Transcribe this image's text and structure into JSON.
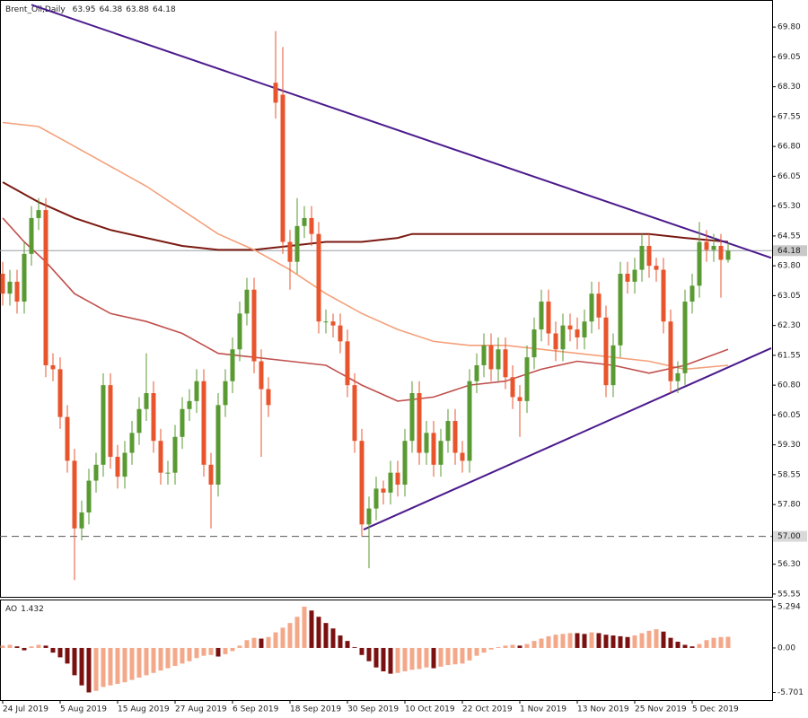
{
  "chart_data": [
    {
      "type": "candlestick",
      "title": "Brent_Oil,Daily",
      "up_color": "#5a9a32",
      "down_color": "#e8542c",
      "xlim": [
        -0.375,
        107.125
      ],
      "ylim": [
        55.48,
        70.48
      ],
      "open": [
        63.6,
        63.1,
        63.4,
        62.9,
        64.1,
        65.0,
        65.2,
        61.3,
        61.2,
        60.0,
        58.9,
        57.2,
        57.6,
        58.4,
        58.8,
        60.8,
        59.0,
        58.5,
        59.1,
        59.6,
        60.2,
        60.6,
        59.4,
        58.6,
        58.6,
        59.5,
        60.2,
        60.4,
        60.9,
        58.8,
        58.3,
        60.3,
        60.9,
        61.7,
        62.6,
        63.2,
        61.4,
        60.7,
        68.4,
        68.1,
        64.4,
        63.9,
        64.8,
        65.0,
        64.6,
        62.4,
        62.4,
        62.3,
        61.9,
        60.8,
        59.4,
        57.3,
        57.7,
        58.2,
        58.1,
        58.6,
        58.3,
        59.4,
        60.6,
        59.1,
        59.6,
        58.8,
        59.4,
        59.9,
        59.1,
        58.9,
        60.9,
        61.3,
        61.8,
        61.2,
        61.7,
        61.0,
        60.5,
        60.4,
        61.5,
        62.2,
        62.9,
        62.1,
        61.7,
        62.3,
        62.2,
        62.0,
        62.4,
        63.1,
        62.5,
        60.8,
        61.8,
        63.6,
        63.4,
        63.7,
        64.3,
        63.8,
        63.7,
        62.4,
        60.9,
        61.1,
        62.9,
        63.3,
        64.4,
        64.2,
        64.3,
        63.95
      ],
      "high": [
        63.9,
        63.7,
        63.7,
        64.4,
        65.3,
        65.5,
        65.5,
        61.6,
        61.5,
        60.3,
        59.2,
        57.9,
        58.7,
        59.1,
        61.1,
        61.1,
        59.3,
        59.4,
        59.9,
        60.5,
        61.6,
        60.9,
        59.7,
        58.9,
        59.8,
        60.5,
        60.7,
        61.2,
        61.2,
        59.1,
        60.6,
        61.2,
        62.0,
        62.9,
        63.5,
        63.5,
        61.7,
        61.0,
        69.7,
        69.3,
        64.7,
        65.5,
        65.3,
        65.3,
        64.9,
        62.7,
        62.6,
        62.6,
        62.2,
        61.1,
        59.7,
        58.0,
        58.5,
        58.4,
        58.9,
        58.9,
        59.7,
        60.9,
        60.9,
        59.9,
        59.9,
        59.7,
        60.2,
        60.2,
        59.4,
        61.2,
        61.6,
        62.1,
        62.1,
        62.0,
        62.0,
        61.3,
        60.8,
        61.8,
        62.5,
        63.2,
        63.2,
        62.4,
        62.6,
        62.6,
        62.5,
        62.7,
        63.4,
        63.4,
        62.8,
        62.1,
        63.9,
        63.9,
        64.0,
        64.6,
        64.6,
        64.0,
        64.0,
        62.7,
        61.4,
        63.2,
        63.6,
        64.9,
        64.7,
        64.6,
        64.6,
        64.38
      ],
      "low": [
        62.8,
        62.8,
        62.6,
        62.6,
        63.8,
        64.7,
        61.0,
        60.9,
        59.7,
        58.6,
        55.9,
        56.9,
        57.3,
        58.1,
        58.5,
        58.7,
        58.2,
        58.2,
        58.8,
        59.3,
        59.9,
        59.1,
        58.3,
        58.3,
        58.3,
        59.2,
        59.9,
        60.1,
        58.5,
        57.2,
        58.0,
        60.0,
        60.6,
        61.4,
        62.3,
        61.1,
        59.0,
        60.0,
        67.5,
        64.1,
        63.2,
        63.6,
        64.5,
        64.3,
        62.1,
        62.1,
        62.0,
        61.6,
        60.5,
        59.1,
        57.0,
        56.2,
        57.4,
        57.8,
        57.8,
        58.0,
        58.0,
        59.1,
        58.8,
        58.8,
        58.5,
        58.5,
        59.1,
        58.8,
        58.6,
        58.6,
        60.6,
        61.0,
        60.9,
        60.9,
        60.7,
        60.2,
        59.5,
        60.1,
        61.2,
        61.9,
        61.8,
        61.4,
        61.4,
        61.9,
        61.7,
        61.7,
        62.1,
        62.2,
        60.5,
        60.5,
        61.5,
        63.1,
        63.1,
        63.4,
        63.5,
        63.4,
        62.1,
        60.6,
        60.6,
        60.8,
        62.6,
        63.0,
        63.9,
        63.9,
        63.0,
        63.88
      ],
      "close": [
        63.1,
        63.4,
        62.9,
        64.1,
        65.0,
        65.2,
        61.3,
        61.2,
        60.0,
        58.9,
        57.2,
        57.6,
        58.4,
        58.8,
        60.8,
        59.0,
        58.5,
        59.1,
        59.6,
        60.2,
        60.6,
        59.4,
        58.6,
        58.6,
        59.5,
        60.2,
        60.4,
        60.9,
        58.8,
        58.3,
        60.3,
        60.9,
        61.7,
        62.6,
        63.2,
        61.4,
        60.7,
        60.3,
        67.9,
        64.4,
        63.9,
        64.8,
        65.0,
        64.6,
        62.4,
        62.4,
        62.3,
        61.9,
        60.8,
        59.4,
        57.3,
        57.7,
        58.2,
        58.1,
        58.6,
        58.3,
        59.4,
        60.6,
        59.1,
        59.6,
        58.8,
        59.4,
        59.9,
        59.1,
        58.9,
        60.9,
        61.3,
        61.8,
        61.2,
        61.7,
        61.0,
        60.5,
        60.4,
        61.5,
        62.2,
        62.9,
        62.1,
        61.7,
        62.3,
        62.2,
        62.0,
        62.4,
        63.1,
        62.5,
        60.8,
        61.8,
        63.6,
        63.4,
        63.7,
        64.3,
        63.8,
        63.7,
        62.4,
        60.9,
        61.1,
        62.9,
        63.3,
        64.4,
        64.2,
        64.3,
        63.95,
        64.18
      ],
      "lines": [
        {
          "color": "#7b1a12",
          "width": 2,
          "x": [
            0,
            5,
            10,
            15,
            20,
            25,
            30,
            35,
            40,
            45,
            50,
            55,
            57,
            65,
            75,
            85,
            90,
            95,
            101
          ],
          "values": [
            65.9,
            65.4,
            65.0,
            64.7,
            64.5,
            64.3,
            64.2,
            64.2,
            64.3,
            64.4,
            64.4,
            64.5,
            64.6,
            64.6,
            64.6,
            64.6,
            64.6,
            64.5,
            64.4
          ]
        },
        {
          "color": "#f4a07a",
          "width": 1.6,
          "x": [
            0,
            5,
            10,
            15,
            20,
            25,
            30,
            35,
            40,
            45,
            50,
            55,
            60,
            65,
            70,
            75,
            80,
            85,
            90,
            95,
            101
          ],
          "values": [
            67.4,
            67.3,
            66.8,
            66.3,
            65.8,
            65.2,
            64.6,
            64.2,
            63.7,
            63.1,
            62.6,
            62.2,
            61.9,
            61.8,
            61.8,
            61.7,
            61.6,
            61.5,
            61.4,
            61.2,
            61.3
          ]
        },
        {
          "color": "#c0504d",
          "width": 1.6,
          "x": [
            0,
            3,
            6,
            10,
            15,
            20,
            25,
            30,
            35,
            40,
            45,
            50,
            55,
            60,
            65,
            70,
            75,
            80,
            85,
            90,
            95,
            101
          ],
          "values": [
            65.0,
            64.4,
            63.9,
            63.1,
            62.6,
            62.4,
            62.1,
            61.6,
            61.5,
            61.4,
            61.3,
            60.8,
            60.4,
            60.5,
            60.8,
            60.9,
            61.2,
            61.4,
            61.3,
            61.1,
            61.3,
            61.7
          ]
        },
        {
          "color": "#4b1a8c",
          "width": 2,
          "x": [
            4,
            107
          ],
          "values": [
            70.36,
            64.0
          ]
        },
        {
          "color": "#4b1a8c",
          "width": 2,
          "x": [
            50.25,
            107
          ],
          "values": [
            57.17,
            61.73
          ]
        }
      ],
      "price_line": 64.18,
      "level_line": {
        "value": 57,
        "label": "57.00"
      },
      "yticks": [
        {
          "value": 69.8,
          "label": "69.80"
        },
        {
          "value": 69.05,
          "label": "69.05"
        },
        {
          "value": 68.3,
          "label": "68.30"
        },
        {
          "value": 67.55,
          "label": "67.55"
        },
        {
          "value": 66.8,
          "label": "66.80"
        },
        {
          "value": 66.05,
          "label": "66.05"
        },
        {
          "value": 65.3,
          "label": "65.30"
        },
        {
          "value": 64.55,
          "label": "64.55"
        },
        {
          "value": 63.8,
          "label": "63.80"
        },
        {
          "value": 63.05,
          "label": "63.05"
        },
        {
          "value": 62.3,
          "label": "62.30"
        },
        {
          "value": 61.55,
          "label": "61.55"
        },
        {
          "value": 60.8,
          "label": "60.80"
        },
        {
          "value": 60.05,
          "label": "60.05"
        },
        {
          "value": 59.3,
          "label": "59.30"
        },
        {
          "value": 58.55,
          "label": "58.55"
        },
        {
          "value": 57.8,
          "label": "57.80"
        },
        {
          "value": 56.3,
          "label": "56.30"
        },
        {
          "value": 55.55,
          "label": "55.55"
        }
      ],
      "xticks": [
        {
          "value": 0,
          "label": "24 Jul 2019"
        },
        {
          "value": 8,
          "label": "5 Aug 2019"
        },
        {
          "value": 16,
          "label": "15 Aug 2019"
        },
        {
          "value": 24,
          "label": "27 Aug 2019"
        },
        {
          "value": 32,
          "label": "6 Sep 2019"
        },
        {
          "value": 40,
          "label": "18 Sep 2019"
        },
        {
          "value": 48,
          "label": "30 Sep 2019"
        },
        {
          "value": 56,
          "label": "10 Oct 2019"
        },
        {
          "value": 64,
          "label": "22 Oct 2019"
        },
        {
          "value": 72,
          "label": "1 Nov 2019"
        },
        {
          "value": 80,
          "label": "13 Nov 2019"
        },
        {
          "value": 88,
          "label": "25 Nov 2019"
        },
        {
          "value": 96,
          "label": "5 Dec 2019"
        }
      ]
    },
    {
      "type": "bar",
      "title": "AO",
      "up_color": "#f4a88a",
      "down_color": "#7b1010",
      "ylim": [
        -6.68,
        6.21
      ],
      "values": [
        0.3,
        0.4,
        0.2,
        -0.3,
        0.2,
        0.4,
        0.3,
        -0.6,
        -1.2,
        -2.0,
        -3.5,
        -4.8,
        -5.7,
        -5.5,
        -5.0,
        -4.8,
        -4.6,
        -4.4,
        -4.1,
        -3.8,
        -3.5,
        -3.2,
        -2.9,
        -2.6,
        -2.3,
        -2.0,
        -1.7,
        -1.3,
        -1.0,
        -0.9,
        -1.1,
        -0.8,
        -0.4,
        0.3,
        1.0,
        1.3,
        1.2,
        1.4,
        2.0,
        2.6,
        3.2,
        4.0,
        5.3,
        4.8,
        4.0,
        3.2,
        2.5,
        1.6,
        0.9,
        0.1,
        -0.9,
        -1.7,
        -2.5,
        -3.0,
        -3.3,
        -3.2,
        -3.0,
        -2.8,
        -2.7,
        -2.5,
        -2.6,
        -2.4,
        -2.2,
        -2.1,
        -2.0,
        -1.6,
        -1.0,
        -0.6,
        -0.2,
        0.1,
        0.3,
        0.4,
        0.3,
        0.5,
        0.9,
        1.2,
        1.5,
        1.7,
        1.8,
        1.9,
        1.9,
        1.8,
        2.0,
        1.9,
        1.7,
        1.6,
        1.5,
        1.4,
        1.6,
        1.9,
        2.2,
        2.4,
        2.1,
        1.3,
        0.8,
        0.4,
        0.2,
        0.5,
        1.0,
        1.3,
        1.4,
        1.432
      ],
      "yticks": [
        5.294,
        {
          "value": 0,
          "label": "0.00"
        },
        -5.701
      ]
    }
  ]
}
